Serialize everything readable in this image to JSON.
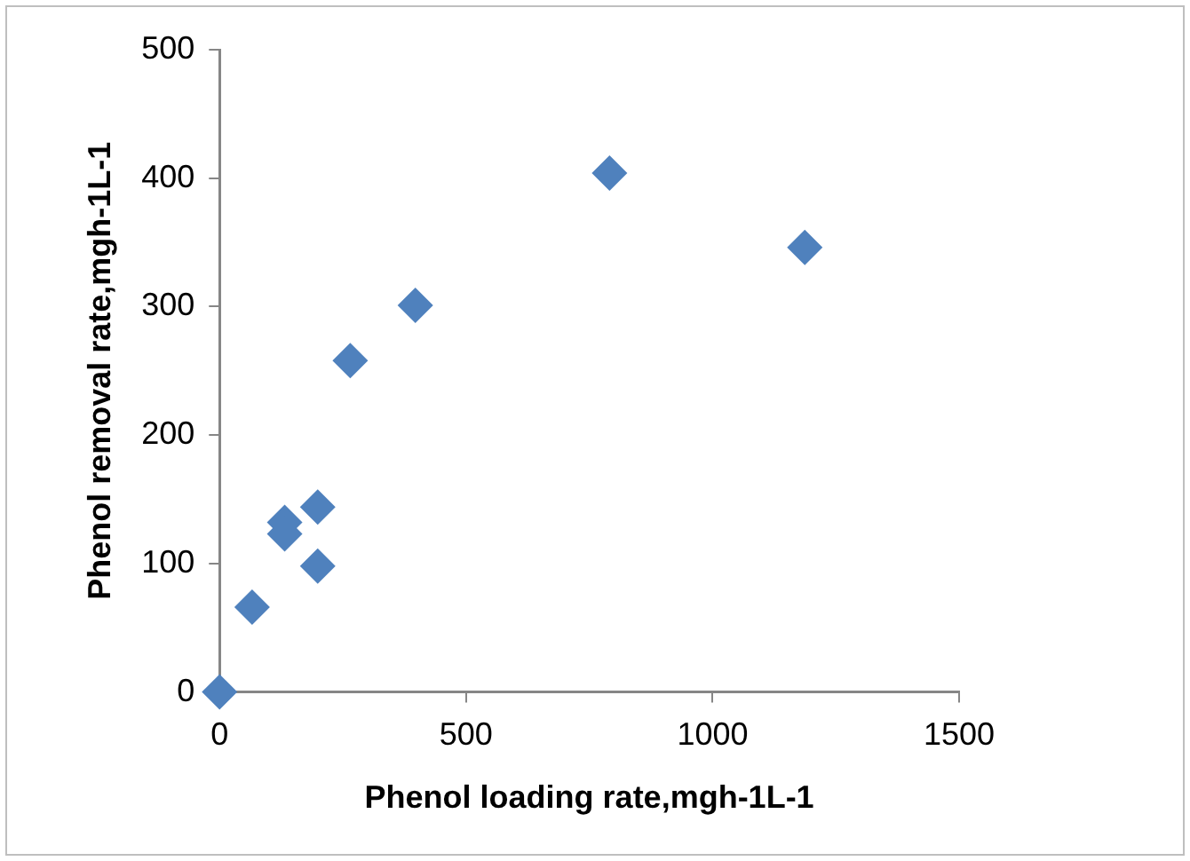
{
  "chart_data": {
    "type": "scatter",
    "xlabel": "Phenol loading rate,mgh-1L-1",
    "ylabel": "Phenol removal rate,mgh-1L-1",
    "x": [
      0,
      66,
      132,
      132,
      199,
      199,
      265,
      397,
      791,
      1187
    ],
    "series": [
      {
        "color": "#4f81bd",
        "values": [
          0,
          66,
          132,
          123,
          144,
          98,
          258,
          301,
          404,
          346
        ]
      }
    ],
    "xlim": [
      0,
      1500
    ],
    "xticks": [
      0,
      500,
      1000,
      1500
    ],
    "ylim": [
      0,
      500
    ],
    "yticks": [
      0,
      100,
      200,
      300,
      400,
      500
    ],
    "grid": false,
    "legend": false,
    "marker": "diamond"
  }
}
